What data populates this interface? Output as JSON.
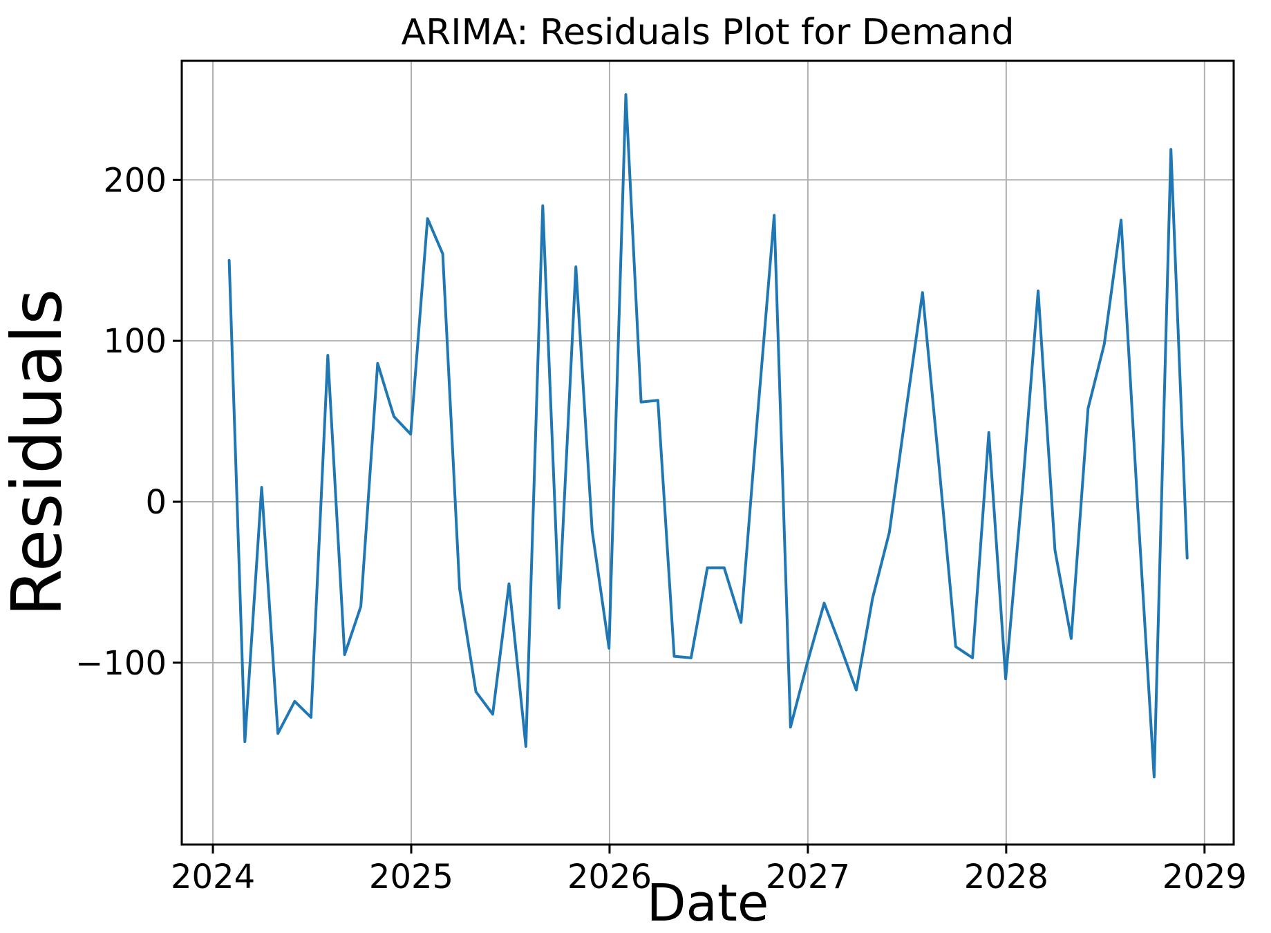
{
  "page": {
    "background_color": "#ffffff"
  },
  "chart_data": {
    "type": "line",
    "title": "ARIMA: Residuals Plot for Demand",
    "xlabel": "Date",
    "ylabel": "Residuals",
    "grid": true,
    "grid_color": "#b0b0b0",
    "axis_color": "#000000",
    "background_color": "#ffffff",
    "legend": "none",
    "x_ticks": [
      {
        "label": "2024",
        "year": 2024
      },
      {
        "label": "2025",
        "year": 2025
      },
      {
        "label": "2026",
        "year": 2026
      },
      {
        "label": "2027",
        "year": 2027
      },
      {
        "label": "2028",
        "year": 2028
      },
      {
        "label": "2029",
        "year": 2029
      }
    ],
    "y_ticks": [
      {
        "label": "−100",
        "value": -100
      },
      {
        "label": "0",
        "value": 0
      },
      {
        "label": "100",
        "value": 100
      },
      {
        "label": "200",
        "value": 200
      }
    ],
    "xlim_yearfrac": [
      2023.843,
      2029.147
    ],
    "ylim": [
      -213,
      274
    ],
    "series": [
      {
        "name": "Residuals",
        "color": "#1f77b4",
        "line_width": 4,
        "dates": [
          "2024-01-31",
          "2024-02-29",
          "2024-03-31",
          "2024-04-30",
          "2024-05-31",
          "2024-06-30",
          "2024-07-31",
          "2024-08-31",
          "2024-09-30",
          "2024-10-31",
          "2024-11-30",
          "2024-12-31",
          "2025-01-31",
          "2025-02-28",
          "2025-03-31",
          "2025-04-30",
          "2025-05-31",
          "2025-06-30",
          "2025-07-31",
          "2025-08-31",
          "2025-09-30",
          "2025-10-31",
          "2025-11-30",
          "2025-12-31",
          "2026-01-31",
          "2026-02-28",
          "2026-03-31",
          "2026-04-30",
          "2026-05-31",
          "2026-06-30",
          "2026-07-31",
          "2026-08-31",
          "2026-09-30",
          "2026-10-31",
          "2026-11-30",
          "2026-12-31",
          "2027-01-31",
          "2027-02-28",
          "2027-03-31",
          "2027-04-30",
          "2027-05-31",
          "2027-06-30",
          "2027-07-31",
          "2027-08-31",
          "2027-09-30",
          "2027-10-31",
          "2027-11-30",
          "2027-12-31",
          "2028-01-31",
          "2028-02-29",
          "2028-03-31",
          "2028-04-30",
          "2028-05-31",
          "2028-06-30",
          "2028-07-31",
          "2028-08-31",
          "2028-09-30",
          "2028-10-31",
          "2028-11-30"
        ],
        "values": [
          150,
          -149,
          9,
          -144,
          -124,
          -134,
          91,
          -95,
          -65,
          86,
          53,
          42,
          176,
          154,
          -54,
          -118,
          -132,
          -51,
          -152,
          184,
          -66,
          146,
          -18,
          -91,
          253,
          62,
          63,
          -96,
          -97,
          -41,
          -41,
          -75,
          52,
          178,
          -140,
          -100,
          -63,
          -88,
          -117,
          -60,
          -19,
          55,
          130,
          20,
          -90,
          -97,
          43,
          -110,
          8,
          131,
          -30,
          -85,
          58,
          98,
          175,
          -5,
          -171,
          219,
          -35
        ]
      }
    ]
  }
}
